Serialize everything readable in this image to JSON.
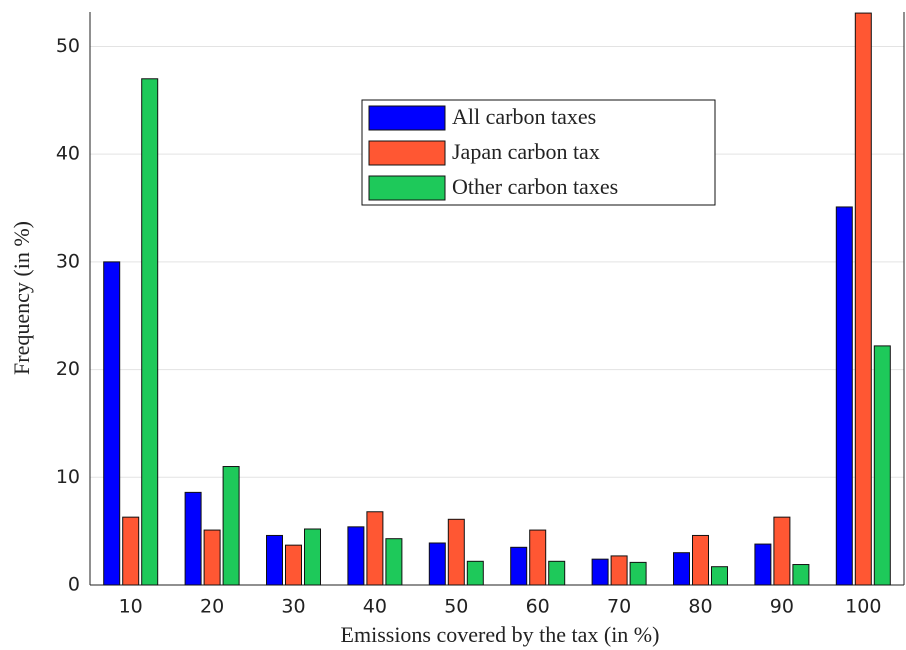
{
  "chart_data": {
    "type": "bar",
    "x_label": "Emissions covered by the tax (in %)",
    "y_label": "Frequency (in %)",
    "categories": [
      10,
      20,
      30,
      40,
      50,
      60,
      70,
      80,
      90,
      100
    ],
    "series": [
      {
        "name": "All carbon taxes",
        "color": "#0000ff",
        "values": [
          30.0,
          8.6,
          4.6,
          5.4,
          3.9,
          3.5,
          2.4,
          3.0,
          3.8,
          35.1
        ]
      },
      {
        "name": "Japan carbon tax",
        "color": "#ff5733",
        "values": [
          6.3,
          5.1,
          3.7,
          6.8,
          6.1,
          5.1,
          2.7,
          4.6,
          6.3,
          53.1
        ]
      },
      {
        "name": "Other carbon taxes",
        "color": "#1ec95a",
        "values": [
          47.0,
          11.0,
          5.2,
          4.3,
          2.2,
          2.2,
          2.1,
          1.7,
          1.9,
          22.2
        ]
      }
    ],
    "ylim": [
      0,
      53.2
    ],
    "yticks": [
      0,
      10,
      20,
      30,
      40,
      50
    ],
    "grid": true
  }
}
